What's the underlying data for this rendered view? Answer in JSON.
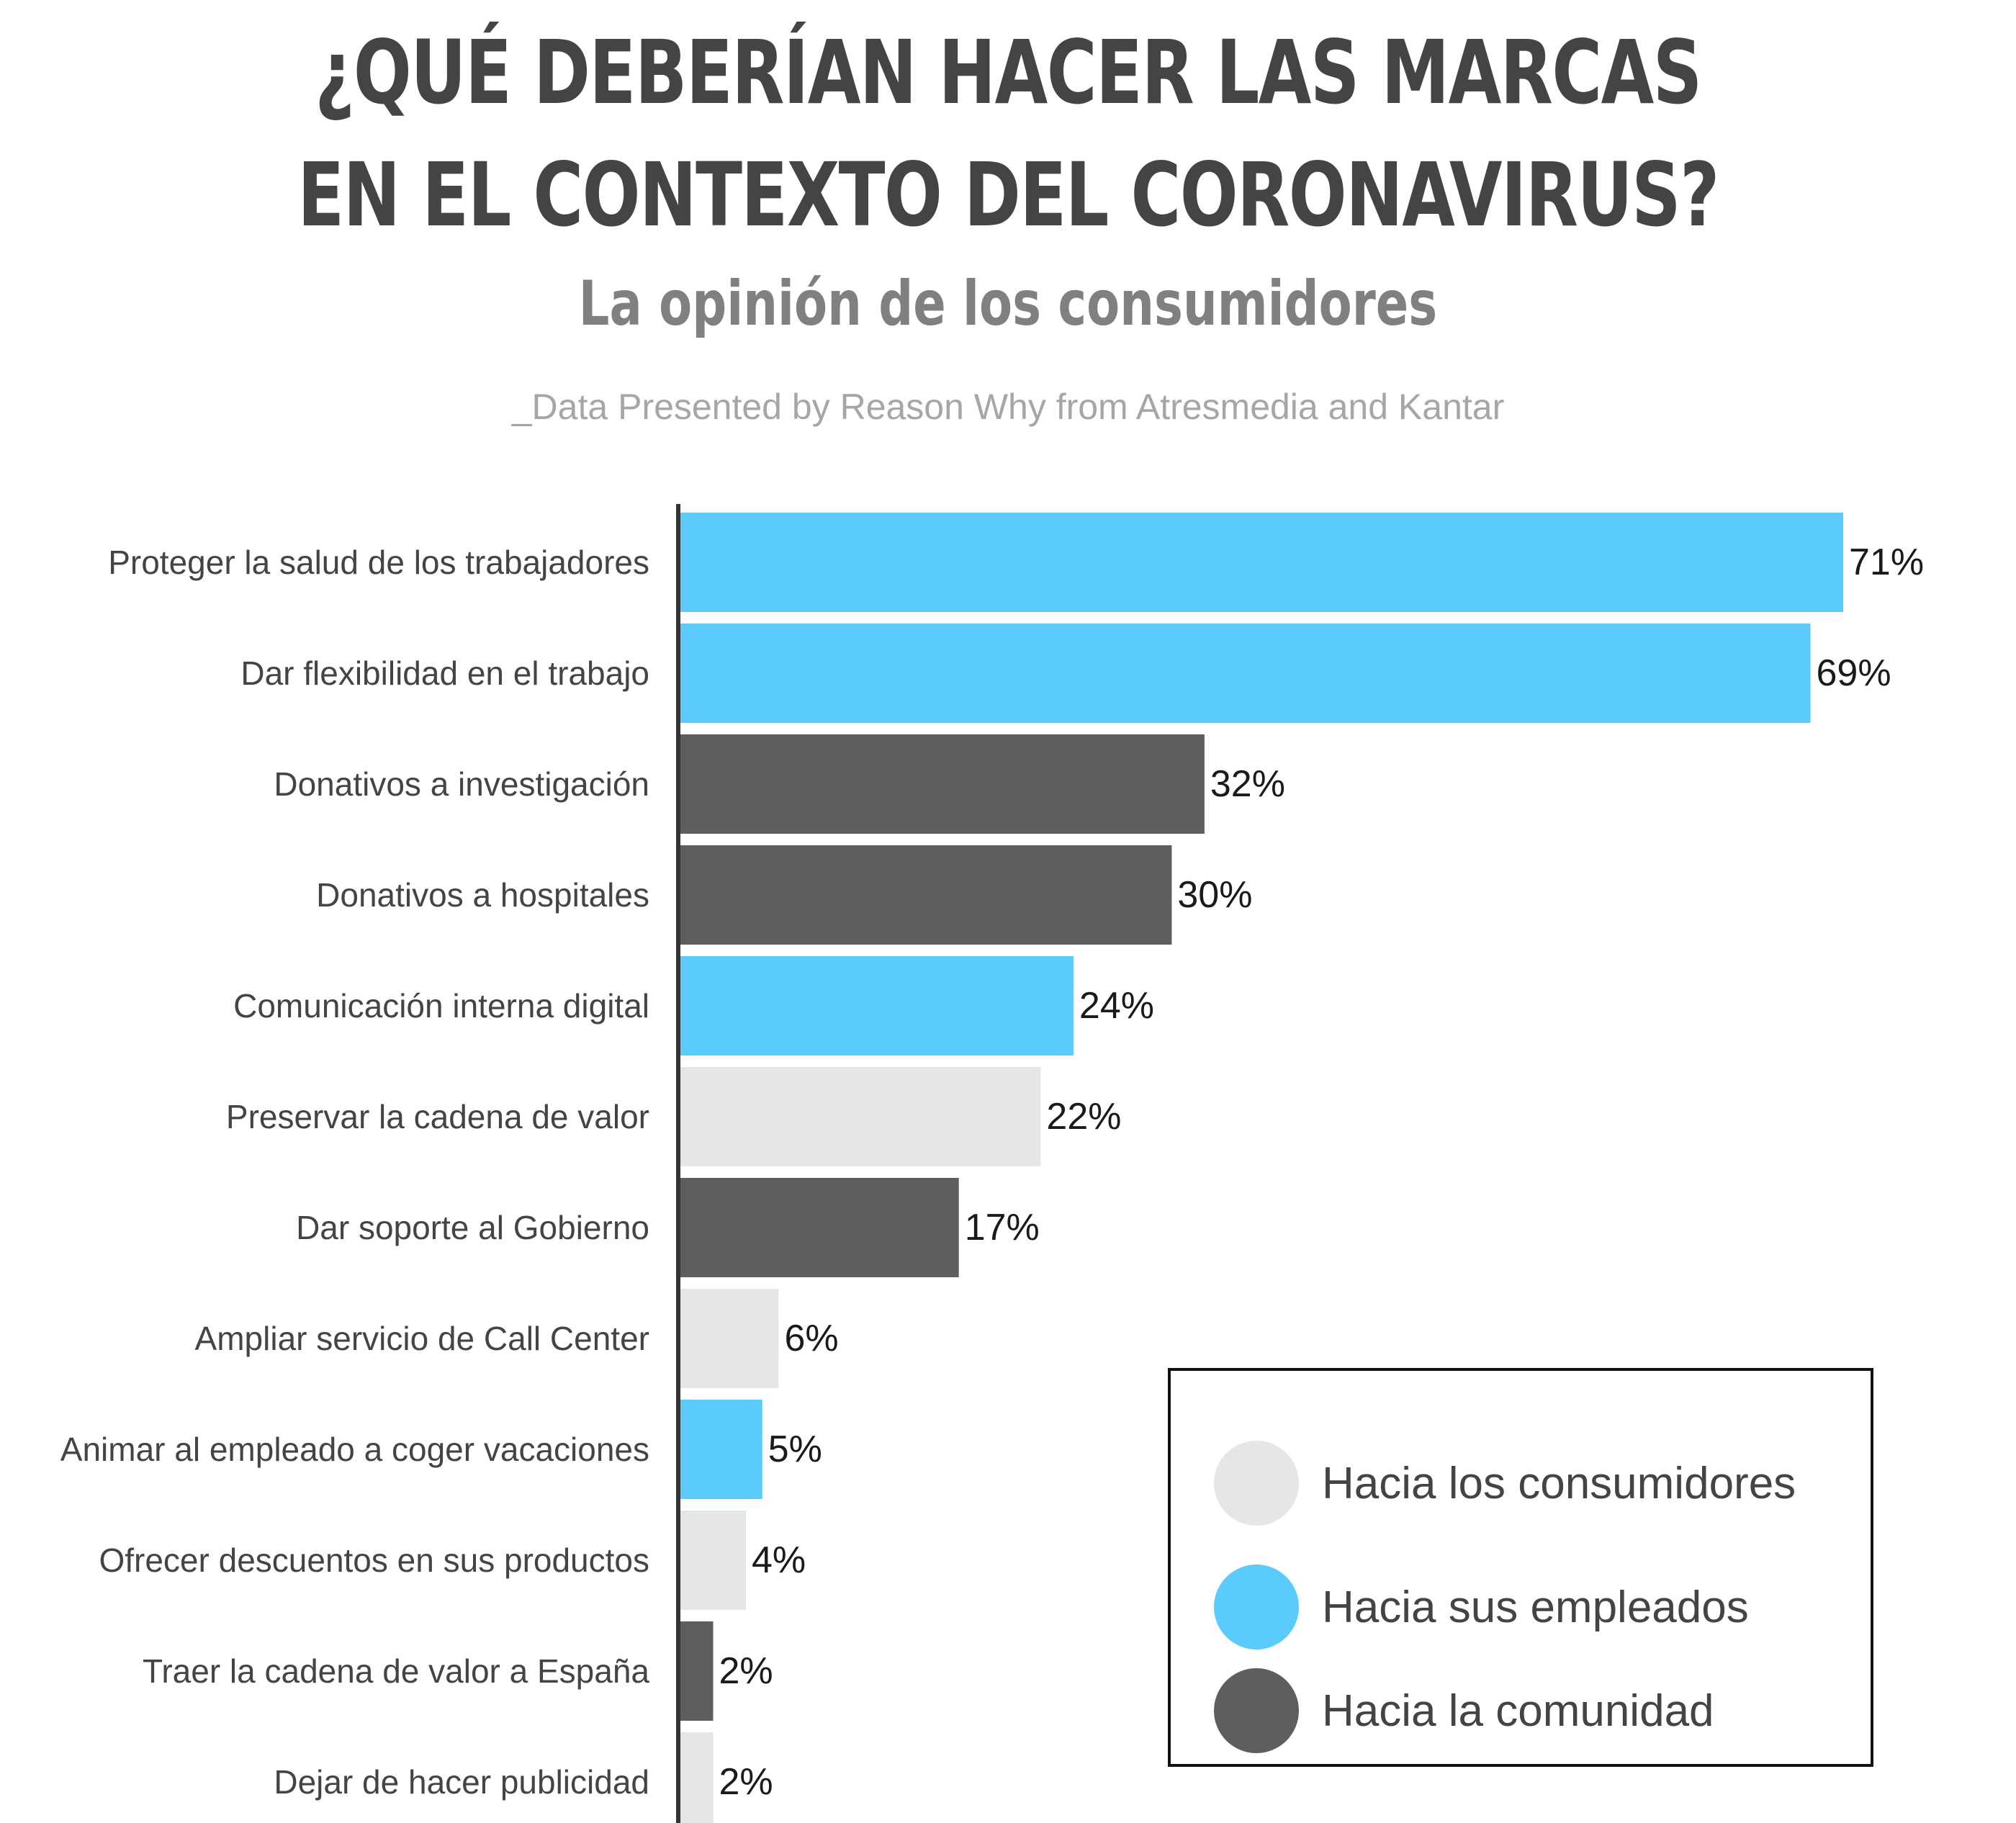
{
  "title_line1": "¿QUÉ DEBERÍAN HACER LAS MARCAS",
  "title_line2": "EN EL CONTEXTO DEL CORONAVIRUS?",
  "subtitle": "La opinión de los consumidores",
  "source": "_Data Presented by Reason Why from Atresmedia and Kantar",
  "colors": {
    "consumidores": "#e6e6e6",
    "empleados": "#5bcbfc",
    "comunidad": "#5e5e5e",
    "axis": "#333333"
  },
  "legend": [
    {
      "label": "Hacia los consumidores",
      "group": "consumidores"
    },
    {
      "label": "Hacia sus empleados",
      "group": "empleados"
    },
    {
      "label": "Hacia la comunidad",
      "group": "comunidad"
    }
  ],
  "chart_data": {
    "type": "bar",
    "orientation": "horizontal",
    "title": "¿QUÉ DEBERÍAN HACER LAS MARCAS EN EL CONTEXTO DEL CORONAVIRUS?",
    "subtitle": "La opinión de los consumidores",
    "xlabel": "",
    "ylabel": "",
    "xlim": [
      0,
      71
    ],
    "grid": false,
    "legend_position": "bottom-right",
    "categories": [
      "Proteger la salud de los trabajadores",
      "Dar flexibilidad en el trabajo",
      "Donativos a investigación",
      "Donativos a hospitales",
      "Comunicación interna digital",
      "Preservar la cadena de valor",
      "Dar soporte al Gobierno",
      "Ampliar servicio de Call Center",
      "Animar al empleado a coger vacaciones",
      "Ofrecer descuentos en sus productos",
      "Traer la cadena de valor a España",
      "Dejar de hacer publicidad"
    ],
    "values": [
      71,
      69,
      32,
      30,
      24,
      22,
      17,
      6,
      5,
      4,
      2,
      2
    ],
    "value_labels": [
      "71%",
      "69%",
      "32%",
      "30%",
      "24%",
      "22%",
      "17%",
      "6%",
      "5%",
      "4%",
      "2%",
      "2%"
    ],
    "groups": [
      "empleados",
      "empleados",
      "comunidad",
      "comunidad",
      "empleados",
      "consumidores",
      "comunidad",
      "consumidores",
      "empleados",
      "consumidores",
      "comunidad",
      "consumidores"
    ]
  }
}
